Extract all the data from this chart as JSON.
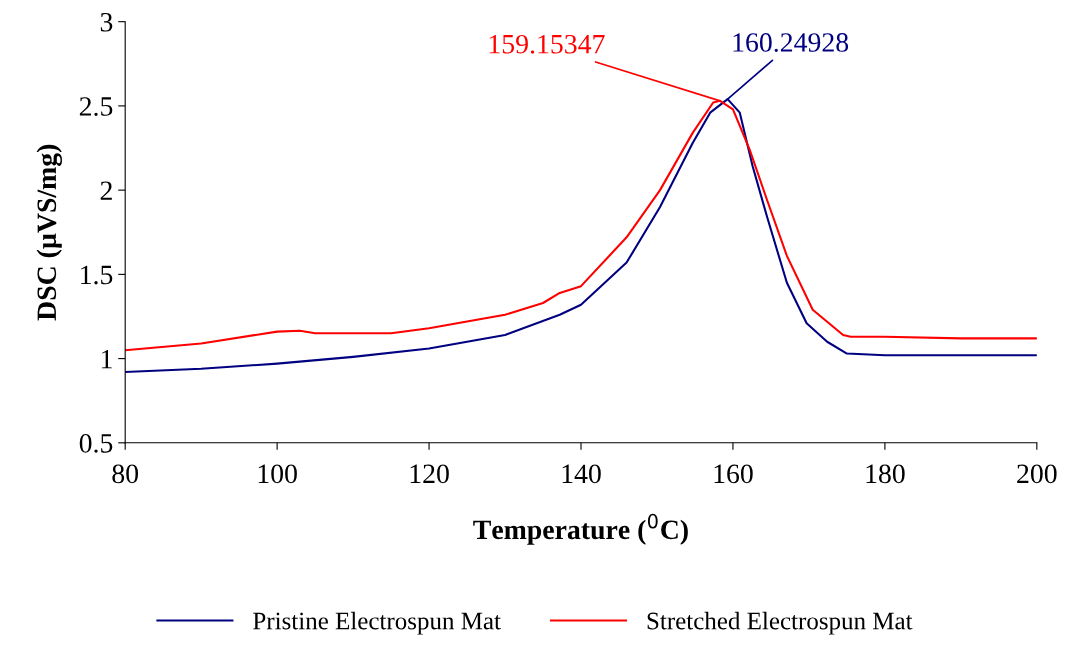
{
  "chart_data": {
    "type": "line",
    "xlabel": "Temperature ($^{0}$C)",
    "ylabel": "DSC (µVS/mg)",
    "xlim": [
      80,
      200
    ],
    "xticks": [
      80,
      100,
      120,
      140,
      160,
      180,
      200
    ],
    "ylim": [
      0.5,
      3
    ],
    "yticks": [
      0.5,
      1,
      1.5,
      2,
      2.5,
      3
    ],
    "grid": false,
    "legend": "bottom",
    "marker": "none",
    "line_style": "solid",
    "series": [
      {
        "name": "Pristine Electrospun Mat",
        "color": "#000080",
        "x": [
          80,
          90,
          100,
          110,
          120,
          130,
          137.2,
          140,
          146,
          150.4,
          154.7,
          157,
          159.3,
          160.9,
          162.6,
          164.5,
          167.1,
          169.7,
          172.4,
          175,
          180,
          190,
          200
        ],
        "values": [
          0.92,
          0.94,
          0.97,
          1.01,
          1.06,
          1.14,
          1.26,
          1.32,
          1.57,
          1.9,
          2.28,
          2.46,
          2.54,
          2.46,
          2.14,
          1.84,
          1.45,
          1.21,
          1.1,
          1.03,
          1.02,
          1.02,
          1.02
        ]
      },
      {
        "name": "Stretched Electrospun Mat",
        "color": "#ff0000",
        "x": [
          80,
          90,
          100,
          103,
          105,
          115,
          120,
          130,
          135,
          137.2,
          140,
          146,
          150.4,
          154.7,
          157.4,
          158.3,
          160,
          162.2,
          164.5,
          167.1,
          170.5,
          174.5,
          175.5,
          180,
          190,
          200
        ],
        "values": [
          1.05,
          1.09,
          1.16,
          1.165,
          1.15,
          1.15,
          1.18,
          1.26,
          1.33,
          1.39,
          1.43,
          1.72,
          2.0,
          2.34,
          2.52,
          2.53,
          2.48,
          2.24,
          1.94,
          1.61,
          1.29,
          1.14,
          1.13,
          1.13,
          1.12,
          1.12
        ]
      }
    ],
    "annotations": [
      {
        "text": "159.15347",
        "x": 158.3,
        "y": 2.53
      },
      {
        "text": "160.24928",
        "x": 159.3,
        "y": 2.54
      }
    ]
  }
}
